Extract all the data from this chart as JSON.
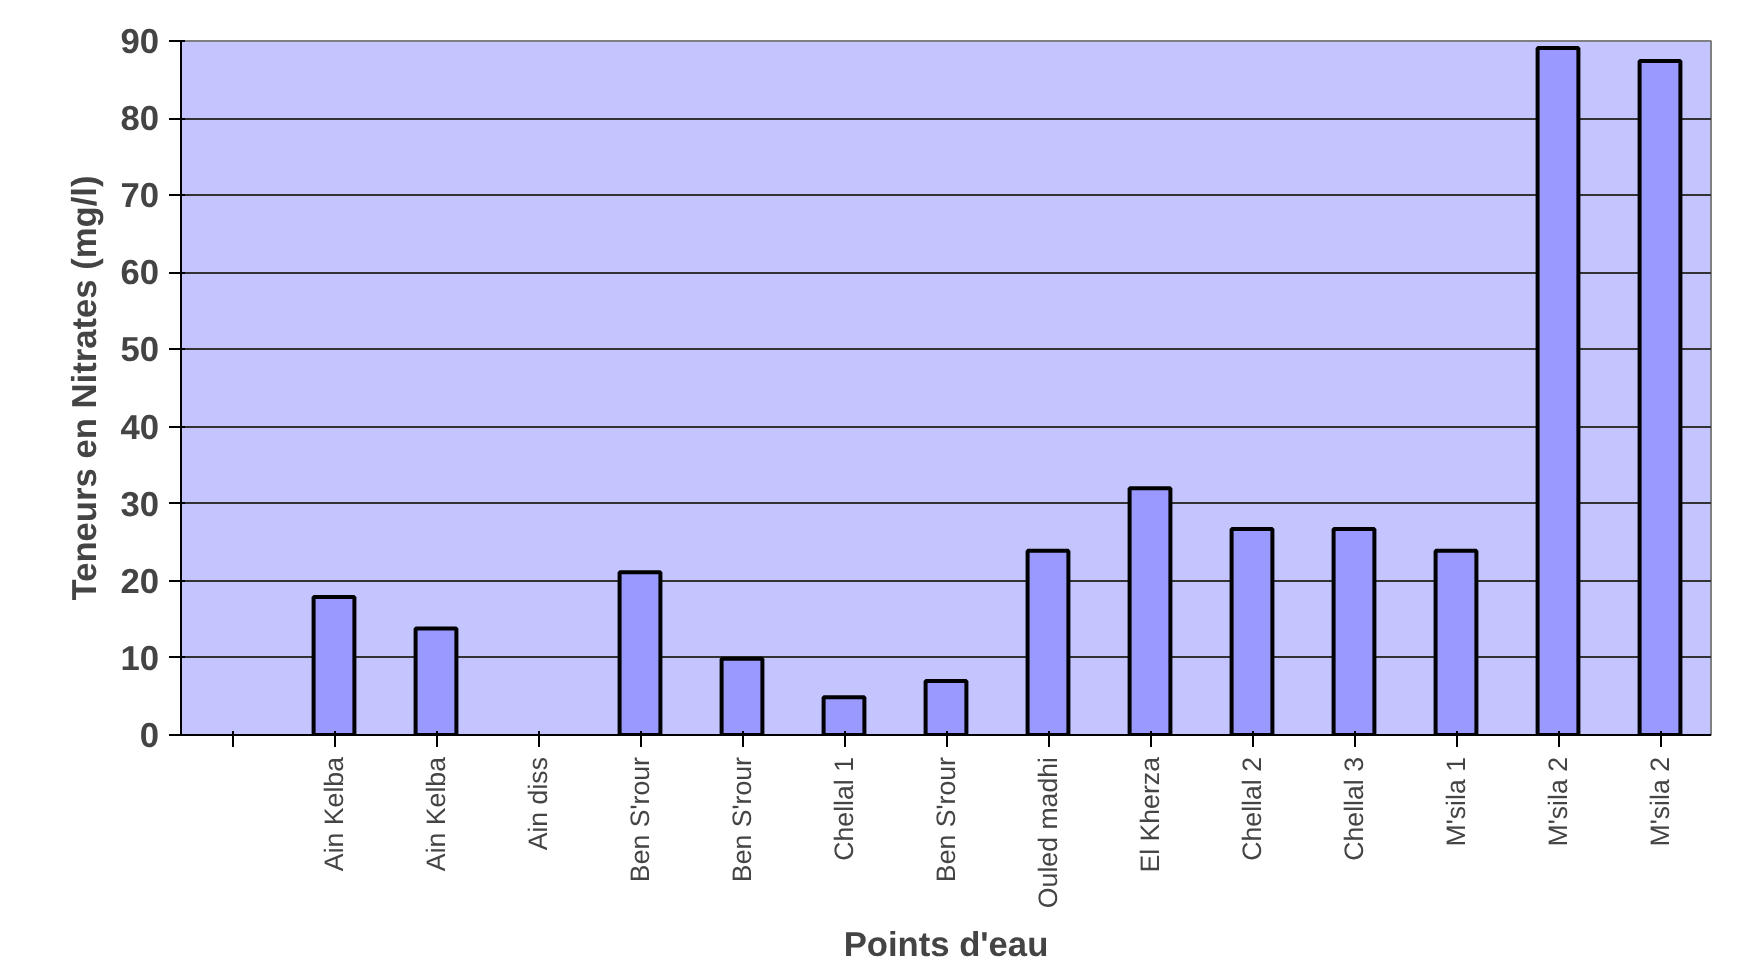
{
  "chart_data": {
    "type": "bar",
    "xlabel": "Points d'eau",
    "ylabel": "Teneurs en Nitrates (mg/l)",
    "categories": [
      null,
      "Ain Kelba",
      "Ain Kelba",
      "Ain diss",
      "Ben S'rour",
      "Ben S'rour",
      "Chellal 1",
      "Ben S'rour",
      "Ouled madhi",
      "El Kherza",
      "Chellal 2",
      "Chellal 3",
      "M'sila 1",
      "M'sila 2",
      "M'sila 2"
    ],
    "values": [
      null,
      17.9,
      13.8,
      null,
      21.1,
      9.9,
      4.9,
      7.0,
      23.9,
      32,
      26.7,
      26.7,
      23.9,
      89.1,
      87.4
    ],
    "color": "#9999ff",
    "ylim": [
      0,
      90
    ],
    "yticks": [
      0,
      10,
      20,
      30,
      40,
      50,
      60,
      70,
      80,
      90
    ],
    "grid": "y"
  }
}
